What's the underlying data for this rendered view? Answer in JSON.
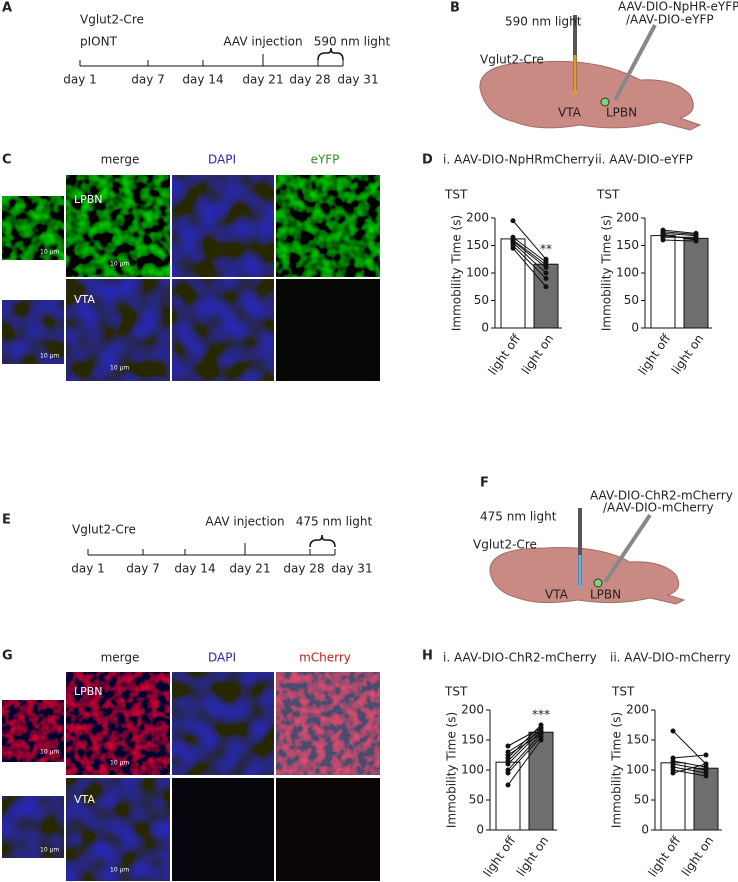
{
  "panel_labels": [
    "A",
    "B",
    "C",
    "D",
    "E",
    "F",
    "G",
    "H"
  ],
  "timeline_a": {
    "lines": [
      "Vglut2-Cre",
      "pIONT"
    ],
    "injection": "AAV injection",
    "light": "590 nm light",
    "days": [
      "day 1",
      "day 7",
      "day 14",
      "day 21",
      "day 28",
      "day 31"
    ]
  },
  "schematic_b": {
    "light": "590 nm light",
    "virus": [
      "AAV-DIO-NpHR-eYFP",
      "/AAV-DIO-eYFP"
    ],
    "mouse": "Vglut2-Cre",
    "regions": [
      "VTA",
      "LPBN"
    ]
  },
  "images_c": {
    "columns": [
      "merge",
      "DAPI",
      "eYFP"
    ],
    "rows": [
      "LPBN",
      "VTA"
    ],
    "scale_bar": "10 μm"
  },
  "timeline_e": {
    "lines": [
      "Vglut2-Cre"
    ],
    "injection": "AAV injection",
    "light": "475 nm light",
    "days": [
      "day 1",
      "day 7",
      "day 14",
      "day 21",
      "day 28",
      "day 31"
    ]
  },
  "schematic_f": {
    "light": "475 nm light",
    "virus": [
      "AAV-DIO-ChR2-mCherry",
      "/AAV-DIO-mCherry"
    ],
    "mouse": "Vglut2-Cre",
    "regions": [
      "VTA",
      "LPBN"
    ]
  },
  "images_g": {
    "columns": [
      "merge",
      "DAPI",
      "mCherry"
    ],
    "rows": [
      "LPBN",
      "VTA"
    ],
    "scale_bar": "10 μm"
  },
  "chart_data": [
    {
      "type": "bar",
      "title": "i. AAV-DIO-NpHRmCherry",
      "subtitle": "TST",
      "ylabel": "Immobility Time (s)",
      "categories": [
        "light off",
        "light on"
      ],
      "values": [
        162,
        116
      ],
      "colors": [
        "#ffffff",
        "#6e6e6e"
      ],
      "ylim": [
        0,
        200
      ],
      "yticks": [
        0,
        50,
        100,
        150,
        200
      ],
      "annotation": "**",
      "subjects": [
        [
          195,
          125
        ],
        [
          165,
          120
        ],
        [
          160,
          115
        ],
        [
          158,
          110
        ],
        [
          155,
          100
        ],
        [
          150,
          90
        ],
        [
          145,
          75
        ]
      ]
    },
    {
      "type": "bar",
      "title": "ii. AAV-DIO-eYFP",
      "subtitle": "TST",
      "ylabel": "Immobility Time (s)",
      "categories": [
        "light off",
        "light on"
      ],
      "values": [
        168,
        163
      ],
      "colors": [
        "#ffffff",
        "#6e6e6e"
      ],
      "ylim": [
        0,
        200
      ],
      "yticks": [
        0,
        50,
        100,
        150,
        200
      ],
      "subjects": [
        [
          178,
          172
        ],
        [
          175,
          170
        ],
        [
          172,
          168
        ],
        [
          168,
          162
        ],
        [
          165,
          165
        ],
        [
          160,
          158
        ],
        [
          170,
          160
        ]
      ]
    },
    {
      "type": "bar",
      "title": "i. AAV-DIO-ChR2-mCherry",
      "subtitle": "TST",
      "ylabel": "Immobility Time (s)",
      "categories": [
        "light off",
        "light on"
      ],
      "values": [
        113,
        163
      ],
      "colors": [
        "#ffffff",
        "#6e6e6e"
      ],
      "ylim": [
        0,
        200
      ],
      "yticks": [
        0,
        50,
        100,
        150,
        200
      ],
      "annotation": "***",
      "subjects": [
        [
          75,
          150
        ],
        [
          95,
          155
        ],
        [
          100,
          160
        ],
        [
          110,
          165
        ],
        [
          115,
          170
        ],
        [
          120,
          175
        ],
        [
          125,
          160
        ],
        [
          130,
          165
        ],
        [
          140,
          170
        ]
      ]
    },
    {
      "type": "bar",
      "title": "ii. AAV-DIO-mCherry",
      "subtitle": "TST",
      "ylabel": "Immobility Time (s)",
      "categories": [
        "light off",
        "light on"
      ],
      "values": [
        112,
        103
      ],
      "colors": [
        "#ffffff",
        "#6e6e6e"
      ],
      "ylim": [
        0,
        200
      ],
      "yticks": [
        0,
        50,
        100,
        150,
        200
      ],
      "subjects": [
        [
          165,
          110
        ],
        [
          120,
          125
        ],
        [
          115,
          105
        ],
        [
          110,
          100
        ],
        [
          105,
          95
        ],
        [
          100,
          90
        ],
        [
          95,
          110
        ]
      ]
    }
  ]
}
